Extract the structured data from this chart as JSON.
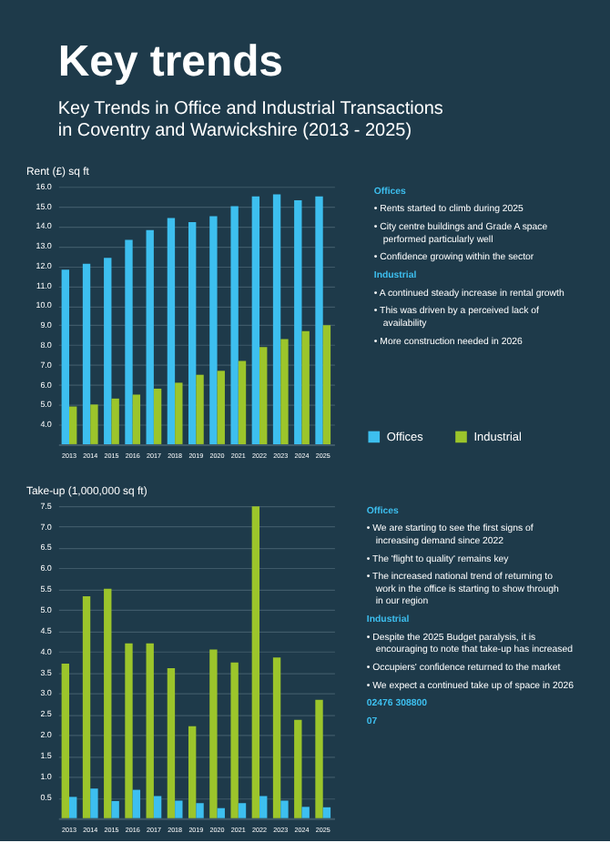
{
  "chart_data": [
    {
      "type": "bar",
      "title": "Key trends",
      "subtitle": "Key Trends in Office and Industrial Transactions in Coventry and Warwickshire (2013 - 2025)",
      "ylabel": "Rent (£) sq ft",
      "categories": [
        "2013",
        "2014",
        "2015",
        "2016",
        "2017",
        "2018",
        "2019",
        "2020",
        "2021",
        "2022",
        "2023",
        "2024",
        "2025"
      ],
      "series": [
        {
          "name": "Offices",
          "color": "#3dbfef",
          "values": [
            11.8,
            12.1,
            12.4,
            13.3,
            13.8,
            14.4,
            14.2,
            14.5,
            15.0,
            15.5,
            15.6,
            15.3,
            15.5
          ]
        },
        {
          "name": "Industrial",
          "color": "#9cc52b",
          "values": [
            4.9,
            5.0,
            5.3,
            5.5,
            5.8,
            6.1,
            6.5,
            6.7,
            7.2,
            7.9,
            8.3,
            8.7,
            9.0
          ]
        }
      ],
      "ylim": [
        3,
        16
      ],
      "yticks": [
        {
          "value": 4,
          "label": "4.0"
        },
        {
          "value": 5,
          "label": "5.0"
        },
        {
          "value": 6,
          "label": "6.0"
        },
        {
          "value": 7,
          "label": "7.0"
        },
        {
          "value": 8,
          "label": "8.0"
        },
        {
          "value": 9,
          "label": "9.0"
        },
        {
          "value": 10,
          "label": "10.0"
        },
        {
          "value": 11,
          "label": "11.0"
        },
        {
          "value": 12,
          "label": "12.0"
        },
        {
          "value": 13,
          "label": "13.0"
        },
        {
          "value": 14,
          "label": "14.0"
        },
        {
          "value": 15,
          "label": "15.0"
        },
        {
          "value": 16,
          "label": "16.0"
        }
      ],
      "grid": "y",
      "legend": "bottom right",
      "annotations": [
        "Offices",
        "• Rents started to climb during 2025",
        "• City centre buildings and Grade A space performed particularly well",
        "• Confidence growing within the sector",
        "Industrial",
        "• A continued steady increase in rental growth",
        "• This was driven by a perceived lack of availability",
        "• More construction needed in 2026"
      ]
    },
    {
      "type": "bar",
      "ylabel": "Take-up (1,000,000 sq ft)",
      "categories": [
        "2013",
        "2014",
        "2015",
        "2016",
        "2017",
        "2018",
        "2019",
        "2020",
        "2021",
        "2022",
        "2023",
        "2024",
        "2025"
      ],
      "series": [
        {
          "color": "#9cc52b",
          "values": [
            3.71,
            5.33,
            5.51,
            4.2,
            4.2,
            3.6,
            2.21,
            4.05,
            3.74,
            7.49,
            3.86,
            2.36,
            2.84
          ]
        },
        {
          "color": "#3dbfef",
          "values": [
            0.51,
            0.71,
            0.41,
            0.68,
            0.53,
            0.42,
            0.36,
            0.24,
            0.36,
            0.53,
            0.42,
            0.27,
            0.26
          ]
        }
      ],
      "ylim": [
        0,
        7.5
      ],
      "yticks": [
        {
          "value": 0,
          "label": null
        },
        {
          "value": 0.5,
          "label": "0.5"
        },
        {
          "value": 1,
          "label": "1.0"
        },
        {
          "value": 1.5,
          "label": "1.5"
        },
        {
          "value": 2,
          "label": "2.0"
        },
        {
          "value": 2.5,
          "label": "2.5"
        },
        {
          "value": 3,
          "label": "3.0"
        },
        {
          "value": 3.5,
          "label": "3.5"
        },
        {
          "value": 4,
          "label": "4.0"
        },
        {
          "value": 4.5,
          "label": "4.5"
        },
        {
          "value": 5,
          "label": "5.0"
        },
        {
          "value": 5.5,
          "label": "5.5"
        },
        {
          "value": 6,
          "label": "6.0"
        },
        {
          "value": 6.5,
          "label": "6.5"
        },
        {
          "value": 7,
          "label": "7.0"
        },
        {
          "value": 7.5,
          "label": "7.5"
        }
      ],
      "grid": "y",
      "annotations": [
        "Offices",
        "• We are starting to see the first signs of increasing demand since 2022",
        "• The 'flight to quality' remains key",
        "• The increased national trend of returning to work in the office is starting to show through in our region",
        "Industrial",
        "• Despite the 2025 Budget paralysis, it is encouraging to note that take-up has increased",
        "• Occupiers' confidence returned to the market",
        "• We expect a continued take up of space in 2026",
        "02476 308800",
        "07"
      ]
    }
  ]
}
